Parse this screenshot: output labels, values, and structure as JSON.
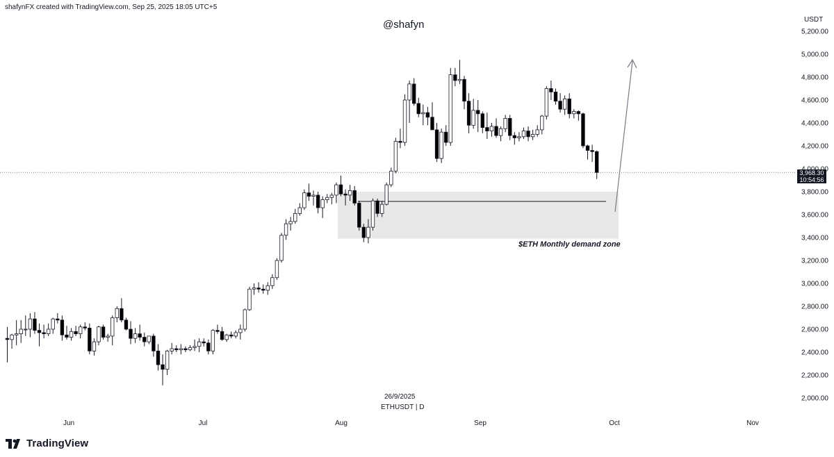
{
  "header": {
    "credit": "shafynFX created with TradingView.com, Sep 25, 2025 18:05 UTC+5"
  },
  "watermark": "@shafyn",
  "currency": "USDT",
  "footer": {
    "date": "26/9/2025",
    "symbol": "ETHUSDT | D"
  },
  "brand": {
    "name": "TradingView",
    "logo_icon": "tradingview-logo-icon"
  },
  "price_tag": {
    "price": "3,968.30",
    "countdown": "10:54:56"
  },
  "colors": {
    "up": "#ffffff",
    "down": "#000000",
    "wick": "#131722",
    "zone": "#e8e8e8",
    "grid": "#e0e3eb"
  },
  "chart_data": {
    "type": "candlestick",
    "symbol": "ETHUSDT",
    "timeframe": "D",
    "y_axis": {
      "ticks": [
        2000,
        2200,
        2400,
        2600,
        2800,
        3000,
        3200,
        3400,
        3600,
        3800,
        4000,
        4200,
        4400,
        4600,
        4800,
        5000,
        5200
      ],
      "tick_labels": [
        "2,000.00",
        "2,200.00",
        "2,400.00",
        "2,600.00",
        "2,800.00",
        "3,000.00",
        "3,200.00",
        "3,400.00",
        "3,600.00",
        "3,800.00",
        "4,000.00",
        "4,200.00",
        "4,400.00",
        "4,600.00",
        "4,800.00",
        "5,000.00",
        "5,200.00"
      ],
      "ylim": [
        1950,
        5280
      ]
    },
    "x_axis": {
      "labels": [
        "Jun",
        "Jul",
        "Aug",
        "Sep",
        "Oct",
        "Nov"
      ]
    },
    "last_price": 3968.3,
    "demand_zone": {
      "label": "$ETH Monthly demand zone",
      "low": 3390,
      "high": 3800,
      "level_line": 3715
    },
    "candles": [
      {
        "o": 2520,
        "h": 2620,
        "l": 2310,
        "c": 2510
      },
      {
        "o": 2510,
        "h": 2560,
        "l": 2430,
        "c": 2550
      },
      {
        "o": 2550,
        "h": 2680,
        "l": 2460,
        "c": 2560
      },
      {
        "o": 2560,
        "h": 2680,
        "l": 2480,
        "c": 2600
      },
      {
        "o": 2600,
        "h": 2720,
        "l": 2540,
        "c": 2600
      },
      {
        "o": 2600,
        "h": 2740,
        "l": 2530,
        "c": 2690
      },
      {
        "o": 2690,
        "h": 2750,
        "l": 2560,
        "c": 2590
      },
      {
        "o": 2590,
        "h": 2650,
        "l": 2450,
        "c": 2570
      },
      {
        "o": 2570,
        "h": 2640,
        "l": 2520,
        "c": 2560
      },
      {
        "o": 2560,
        "h": 2650,
        "l": 2540,
        "c": 2600
      },
      {
        "o": 2600,
        "h": 2700,
        "l": 2560,
        "c": 2690
      },
      {
        "o": 2690,
        "h": 2740,
        "l": 2650,
        "c": 2680
      },
      {
        "o": 2680,
        "h": 2720,
        "l": 2500,
        "c": 2550
      },
      {
        "o": 2550,
        "h": 2630,
        "l": 2510,
        "c": 2530
      },
      {
        "o": 2530,
        "h": 2610,
        "l": 2500,
        "c": 2580
      },
      {
        "o": 2580,
        "h": 2630,
        "l": 2540,
        "c": 2560
      },
      {
        "o": 2560,
        "h": 2640,
        "l": 2520,
        "c": 2620
      },
      {
        "o": 2620,
        "h": 2660,
        "l": 2590,
        "c": 2610
      },
      {
        "o": 2610,
        "h": 2650,
        "l": 2380,
        "c": 2410
      },
      {
        "o": 2410,
        "h": 2520,
        "l": 2370,
        "c": 2490
      },
      {
        "o": 2490,
        "h": 2630,
        "l": 2460,
        "c": 2620
      },
      {
        "o": 2620,
        "h": 2640,
        "l": 2510,
        "c": 2530
      },
      {
        "o": 2530,
        "h": 2560,
        "l": 2490,
        "c": 2540
      },
      {
        "o": 2540,
        "h": 2720,
        "l": 2460,
        "c": 2700
      },
      {
        "o": 2700,
        "h": 2800,
        "l": 2660,
        "c": 2780
      },
      {
        "o": 2780,
        "h": 2870,
        "l": 2660,
        "c": 2680
      },
      {
        "o": 2680,
        "h": 2700,
        "l": 2590,
        "c": 2600
      },
      {
        "o": 2600,
        "h": 2670,
        "l": 2470,
        "c": 2520
      },
      {
        "o": 2520,
        "h": 2610,
        "l": 2480,
        "c": 2560
      },
      {
        "o": 2560,
        "h": 2640,
        "l": 2500,
        "c": 2530
      },
      {
        "o": 2530,
        "h": 2570,
        "l": 2450,
        "c": 2490
      },
      {
        "o": 2490,
        "h": 2540,
        "l": 2470,
        "c": 2540
      },
      {
        "o": 2540,
        "h": 2560,
        "l": 2360,
        "c": 2410
      },
      {
        "o": 2410,
        "h": 2470,
        "l": 2240,
        "c": 2290
      },
      {
        "o": 2290,
        "h": 2380,
        "l": 2110,
        "c": 2250
      },
      {
        "o": 2250,
        "h": 2420,
        "l": 2200,
        "c": 2410
      },
      {
        "o": 2410,
        "h": 2480,
        "l": 2380,
        "c": 2430
      },
      {
        "o": 2430,
        "h": 2460,
        "l": 2400,
        "c": 2420
      },
      {
        "o": 2420,
        "h": 2470,
        "l": 2380,
        "c": 2430
      },
      {
        "o": 2430,
        "h": 2450,
        "l": 2400,
        "c": 2420
      },
      {
        "o": 2420,
        "h": 2460,
        "l": 2410,
        "c": 2440
      },
      {
        "o": 2440,
        "h": 2510,
        "l": 2410,
        "c": 2450
      },
      {
        "o": 2450,
        "h": 2520,
        "l": 2400,
        "c": 2490
      },
      {
        "o": 2490,
        "h": 2520,
        "l": 2450,
        "c": 2480
      },
      {
        "o": 2480,
        "h": 2510,
        "l": 2380,
        "c": 2410
      },
      {
        "o": 2410,
        "h": 2600,
        "l": 2380,
        "c": 2590
      },
      {
        "o": 2590,
        "h": 2640,
        "l": 2560,
        "c": 2580
      },
      {
        "o": 2580,
        "h": 2620,
        "l": 2500,
        "c": 2510
      },
      {
        "o": 2510,
        "h": 2560,
        "l": 2490,
        "c": 2550
      },
      {
        "o": 2550,
        "h": 2580,
        "l": 2520,
        "c": 2540
      },
      {
        "o": 2540,
        "h": 2590,
        "l": 2520,
        "c": 2570
      },
      {
        "o": 2570,
        "h": 2640,
        "l": 2510,
        "c": 2600
      },
      {
        "o": 2600,
        "h": 2780,
        "l": 2580,
        "c": 2770
      },
      {
        "o": 2770,
        "h": 2970,
        "l": 2760,
        "c": 2950
      },
      {
        "o": 2950,
        "h": 3000,
        "l": 2900,
        "c": 2960
      },
      {
        "o": 2960,
        "h": 3010,
        "l": 2920,
        "c": 2950
      },
      {
        "o": 2950,
        "h": 2990,
        "l": 2910,
        "c": 2940
      },
      {
        "o": 2940,
        "h": 3010,
        "l": 2900,
        "c": 2980
      },
      {
        "o": 2980,
        "h": 3080,
        "l": 2950,
        "c": 3050
      },
      {
        "o": 3050,
        "h": 3220,
        "l": 3030,
        "c": 3200
      },
      {
        "o": 3200,
        "h": 3440,
        "l": 3180,
        "c": 3420
      },
      {
        "o": 3420,
        "h": 3560,
        "l": 3380,
        "c": 3520
      },
      {
        "o": 3520,
        "h": 3580,
        "l": 3460,
        "c": 3540
      },
      {
        "o": 3540,
        "h": 3650,
        "l": 3520,
        "c": 3610
      },
      {
        "o": 3610,
        "h": 3700,
        "l": 3590,
        "c": 3660
      },
      {
        "o": 3660,
        "h": 3820,
        "l": 3640,
        "c": 3790
      },
      {
        "o": 3790,
        "h": 3870,
        "l": 3720,
        "c": 3760
      },
      {
        "o": 3760,
        "h": 3810,
        "l": 3680,
        "c": 3770
      },
      {
        "o": 3770,
        "h": 3800,
        "l": 3610,
        "c": 3660
      },
      {
        "o": 3660,
        "h": 3760,
        "l": 3570,
        "c": 3730
      },
      {
        "o": 3730,
        "h": 3780,
        "l": 3700,
        "c": 3750
      },
      {
        "o": 3750,
        "h": 3790,
        "l": 3690,
        "c": 3770
      },
      {
        "o": 3770,
        "h": 3880,
        "l": 3700,
        "c": 3860
      },
      {
        "o": 3860,
        "h": 3940,
        "l": 3760,
        "c": 3780
      },
      {
        "o": 3780,
        "h": 3820,
        "l": 3680,
        "c": 3770
      },
      {
        "o": 3770,
        "h": 3860,
        "l": 3720,
        "c": 3810
      },
      {
        "o": 3810,
        "h": 3850,
        "l": 3680,
        "c": 3700
      },
      {
        "o": 3700,
        "h": 3720,
        "l": 3460,
        "c": 3490
      },
      {
        "o": 3490,
        "h": 3520,
        "l": 3360,
        "c": 3400
      },
      {
        "o": 3400,
        "h": 3560,
        "l": 3350,
        "c": 3490
      },
      {
        "o": 3490,
        "h": 3740,
        "l": 3460,
        "c": 3720
      },
      {
        "o": 3720,
        "h": 3740,
        "l": 3580,
        "c": 3610
      },
      {
        "o": 3610,
        "h": 3720,
        "l": 3580,
        "c": 3690
      },
      {
        "o": 3690,
        "h": 3880,
        "l": 3680,
        "c": 3860
      },
      {
        "o": 3860,
        "h": 4010,
        "l": 3840,
        "c": 3980
      },
      {
        "o": 3980,
        "h": 4270,
        "l": 3960,
        "c": 4240
      },
      {
        "o": 4240,
        "h": 4350,
        "l": 4180,
        "c": 4230
      },
      {
        "o": 4230,
        "h": 4650,
        "l": 4200,
        "c": 4600
      },
      {
        "o": 4600,
        "h": 4770,
        "l": 4400,
        "c": 4740
      },
      {
        "o": 4740,
        "h": 4790,
        "l": 4550,
        "c": 4570
      },
      {
        "o": 4570,
        "h": 4620,
        "l": 4450,
        "c": 4480
      },
      {
        "o": 4480,
        "h": 4560,
        "l": 4380,
        "c": 4490
      },
      {
        "o": 4490,
        "h": 4540,
        "l": 4380,
        "c": 4450
      },
      {
        "o": 4450,
        "h": 4580,
        "l": 4350,
        "c": 4340
      },
      {
        "o": 4340,
        "h": 4400,
        "l": 4060,
        "c": 4090
      },
      {
        "o": 4090,
        "h": 4350,
        "l": 4050,
        "c": 4320
      },
      {
        "o": 4320,
        "h": 4380,
        "l": 4200,
        "c": 4230
      },
      {
        "o": 4230,
        "h": 4880,
        "l": 4200,
        "c": 4820
      },
      {
        "o": 4820,
        "h": 4880,
        "l": 4720,
        "c": 4770
      },
      {
        "o": 4770,
        "h": 4950,
        "l": 4740,
        "c": 4780
      },
      {
        "o": 4780,
        "h": 4810,
        "l": 4520,
        "c": 4590
      },
      {
        "o": 4590,
        "h": 4660,
        "l": 4310,
        "c": 4380
      },
      {
        "o": 4380,
        "h": 4610,
        "l": 4350,
        "c": 4510
      },
      {
        "o": 4510,
        "h": 4600,
        "l": 4320,
        "c": 4480
      },
      {
        "o": 4480,
        "h": 4500,
        "l": 4310,
        "c": 4360
      },
      {
        "o": 4360,
        "h": 4490,
        "l": 4260,
        "c": 4330
      },
      {
        "o": 4330,
        "h": 4400,
        "l": 4280,
        "c": 4370
      },
      {
        "o": 4370,
        "h": 4440,
        "l": 4270,
        "c": 4290
      },
      {
        "o": 4290,
        "h": 4370,
        "l": 4240,
        "c": 4350
      },
      {
        "o": 4350,
        "h": 4470,
        "l": 4320,
        "c": 4440
      },
      {
        "o": 4440,
        "h": 4470,
        "l": 4250,
        "c": 4290
      },
      {
        "o": 4290,
        "h": 4320,
        "l": 4210,
        "c": 4270
      },
      {
        "o": 4270,
        "h": 4320,
        "l": 4240,
        "c": 4280
      },
      {
        "o": 4280,
        "h": 4360,
        "l": 4260,
        "c": 4330
      },
      {
        "o": 4330,
        "h": 4370,
        "l": 4240,
        "c": 4280
      },
      {
        "o": 4280,
        "h": 4340,
        "l": 4250,
        "c": 4300
      },
      {
        "o": 4300,
        "h": 4380,
        "l": 4280,
        "c": 4340
      },
      {
        "o": 4340,
        "h": 4470,
        "l": 4300,
        "c": 4460
      },
      {
        "o": 4460,
        "h": 4720,
        "l": 4430,
        "c": 4700
      },
      {
        "o": 4700,
        "h": 4770,
        "l": 4600,
        "c": 4670
      },
      {
        "o": 4670,
        "h": 4700,
        "l": 4560,
        "c": 4590
      },
      {
        "o": 4590,
        "h": 4660,
        "l": 4490,
        "c": 4520
      },
      {
        "o": 4520,
        "h": 4640,
        "l": 4470,
        "c": 4610
      },
      {
        "o": 4610,
        "h": 4660,
        "l": 4440,
        "c": 4480
      },
      {
        "o": 4480,
        "h": 4520,
        "l": 4440,
        "c": 4500
      },
      {
        "o": 4500,
        "h": 4510,
        "l": 4420,
        "c": 4480
      },
      {
        "o": 4480,
        "h": 4490,
        "l": 4180,
        "c": 4200
      },
      {
        "o": 4200,
        "h": 4210,
        "l": 4080,
        "c": 4160
      },
      {
        "o": 4160,
        "h": 4210,
        "l": 4060,
        "c": 4150
      },
      {
        "o": 4150,
        "h": 4160,
        "l": 3910,
        "c": 3968
      }
    ]
  }
}
